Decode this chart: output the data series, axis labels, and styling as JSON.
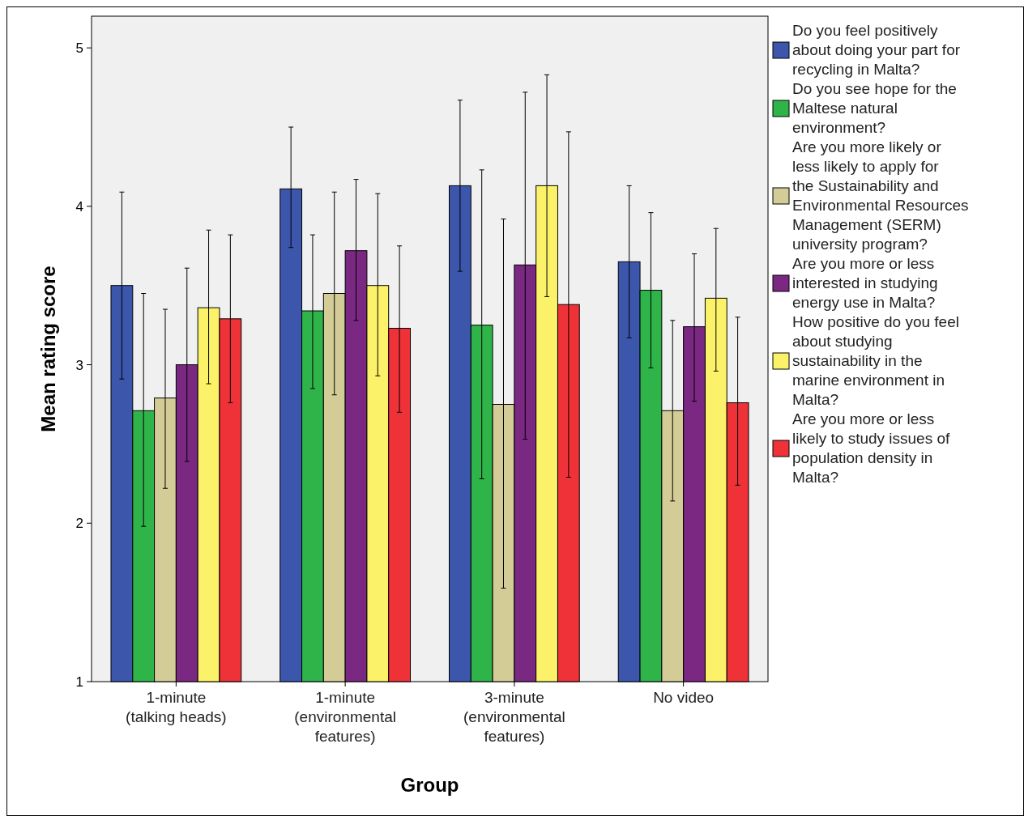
{
  "chart_data": {
    "type": "bar",
    "xlabel": "Group",
    "ylabel": "Mean rating score",
    "categories": [
      "1-minute (talking heads)",
      "1-minute (environmental features)",
      "3-minute (environmental features)",
      "No video"
    ],
    "ylim": [
      1,
      5.2
    ],
    "yticks": [
      1,
      2,
      3,
      4,
      5
    ],
    "grid": false,
    "legend": "right",
    "series": [
      {
        "name": "Do you feel positively about doing your part for recycling in Malta?",
        "color": "#3c56ac",
        "values": [
          3.5,
          4.11,
          4.13,
          3.65
        ],
        "errors": [
          [
            2.91,
            4.09
          ],
          [
            3.74,
            4.5
          ],
          [
            3.59,
            4.67
          ],
          [
            3.17,
            4.13
          ]
        ]
      },
      {
        "name": "Do you see hope for the Maltese natural environment?",
        "color": "#2fb44a",
        "values": [
          2.71,
          3.34,
          3.25,
          3.47
        ],
        "errors": [
          [
            1.98,
            3.45
          ],
          [
            2.85,
            3.82
          ],
          [
            2.28,
            4.23
          ],
          [
            2.98,
            3.96
          ]
        ]
      },
      {
        "name": "Are you more likely or less likely to apply for the Sustainability and Environmental Resources Management (SERM) university program?",
        "color": "#d4cc96",
        "values": [
          2.79,
          3.45,
          2.75,
          2.71
        ],
        "errors": [
          [
            2.22,
            3.35
          ],
          [
            2.81,
            4.09
          ],
          [
            1.59,
            3.92
          ],
          [
            2.14,
            3.28
          ]
        ]
      },
      {
        "name": "Are you more or less interested in studying energy use in Malta?",
        "color": "#7a2882",
        "values": [
          3.0,
          3.72,
          3.63,
          3.24
        ],
        "errors": [
          [
            2.39,
            3.61
          ],
          [
            3.28,
            4.17
          ],
          [
            2.53,
            4.72
          ],
          [
            2.77,
            3.7
          ]
        ]
      },
      {
        "name": "How positive do you feel about studying sustainability in the marine environment in Malta?",
        "color": "#fcf26a",
        "values": [
          3.36,
          3.5,
          4.13,
          3.42
        ],
        "errors": [
          [
            2.88,
            3.85
          ],
          [
            2.93,
            4.08
          ],
          [
            3.43,
            4.83
          ],
          [
            2.96,
            3.86
          ]
        ]
      },
      {
        "name": "Are you more or less likely to study issues of population density in Malta?",
        "color": "#ee3238",
        "values": [
          3.29,
          3.23,
          3.38,
          2.76
        ],
        "errors": [
          [
            2.76,
            3.82
          ],
          [
            2.7,
            3.75
          ],
          [
            2.29,
            4.47
          ],
          [
            2.24,
            3.3
          ]
        ]
      }
    ]
  }
}
